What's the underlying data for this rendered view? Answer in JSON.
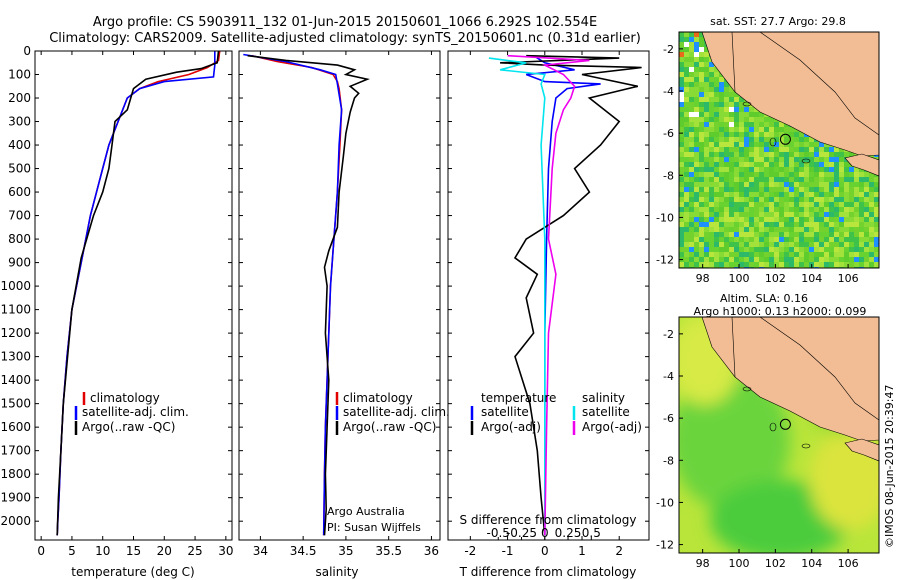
{
  "title": {
    "line1": "Argo profile: CS 5903911_132 01-Jun-2015 20150601_1066 6.292S 102.554E",
    "line2": "Climatology: CARS2009. Satellite-adjusted climatology: synTS_20150601.nc (0.31d earlier)"
  },
  "colors": {
    "climatology": "#e00000",
    "satellite": "#0000ff",
    "argo": "#000000",
    "cyan": "#00e5ee",
    "magenta": "#ee00ee",
    "land": "#f2bd94"
  },
  "chart_data": [
    {
      "type": "line",
      "name": "temperature-profile",
      "xlabel": "temperature (deg C)",
      "ylabel": "",
      "xlim": [
        -1,
        31
      ],
      "ylim": [
        2080,
        0
      ],
      "xticks": [
        0,
        5,
        10,
        15,
        20,
        25,
        30
      ],
      "yticks": [
        0,
        100,
        200,
        300,
        400,
        500,
        600,
        700,
        800,
        900,
        1000,
        1100,
        1200,
        1300,
        1400,
        1500,
        1600,
        1700,
        1800,
        1900,
        2000
      ],
      "legend": [
        "climatology",
        "satellite-adj. clim.",
        "Argo(..raw -QC)"
      ],
      "legend_colors": [
        "#e00000",
        "#0000ff",
        "#000000"
      ],
      "series": [
        {
          "name": "climatology",
          "color": "#e00000",
          "x": [
            29,
            28.8,
            27,
            24,
            19,
            16,
            14,
            12.5,
            11,
            10,
            9.5,
            8,
            6.5,
            5,
            4.2,
            3.6,
            3.2,
            2.9,
            2.7,
            2.6
          ],
          "y": [
            0,
            40,
            70,
            100,
            130,
            160,
            200,
            300,
            400,
            500,
            550,
            700,
            900,
            1100,
            1300,
            1500,
            1700,
            1900,
            2000,
            2060
          ]
        },
        {
          "name": "satellite-adj. clim.",
          "color": "#0000ff",
          "x": [
            28.2,
            28.2,
            28,
            20,
            16,
            14,
            12.5,
            11,
            10,
            9.5,
            8,
            6.5,
            5,
            4.2,
            3.6,
            3.2,
            2.9,
            2.7,
            2.6
          ],
          "y": [
            0,
            60,
            110,
            130,
            160,
            200,
            300,
            400,
            500,
            550,
            700,
            900,
            1100,
            1300,
            1500,
            1700,
            1900,
            2000,
            2060
          ]
        },
        {
          "name": "Argo(..raw -QC)",
          "color": "#000000",
          "x": [
            28.8,
            28.6,
            26,
            22,
            17,
            15,
            14,
            12,
            11.5,
            11,
            10,
            8.5,
            6.5,
            5,
            4.3,
            3.6,
            3.2,
            2.8,
            2.6
          ],
          "y": [
            0,
            50,
            75,
            90,
            120,
            160,
            250,
            300,
            400,
            500,
            600,
            700,
            880,
            1100,
            1300,
            1500,
            1700,
            1900,
            2060
          ]
        }
      ]
    },
    {
      "type": "line",
      "name": "salinity-profile",
      "xlabel": "salinity",
      "xlim": [
        33.75,
        36.1
      ],
      "ylim": [
        2080,
        0
      ],
      "xticks": [
        34,
        34.5,
        35,
        35.5,
        36
      ],
      "xticklabels": [
        "34",
        "34.5",
        "35",
        "35.5",
        "36"
      ],
      "legend": [
        "climatology",
        "satellite-adj. clim.",
        "Argo(..raw -QC)"
      ],
      "legend_colors": [
        "#e00000",
        "#0000ff",
        "#000000"
      ],
      "annotation": [
        "Argo Australia",
        "PI: Susan Wijffels"
      ],
      "series": [
        {
          "name": "climatology",
          "color": "#e00000",
          "x": [
            33.9,
            34.2,
            34.6,
            34.85,
            34.9,
            34.92,
            34.95,
            34.93,
            34.9,
            34.86,
            34.82,
            34.8,
            34.78,
            34.76,
            34.75,
            34.74
          ],
          "y": [
            20,
            45,
            70,
            100,
            130,
            160,
            250,
            400,
            600,
            800,
            1000,
            1200,
            1400,
            1600,
            1800,
            2060
          ]
        },
        {
          "name": "satellite-adj. clim.",
          "color": "#0000ff",
          "x": [
            33.8,
            34.3,
            34.7,
            34.88,
            34.9,
            34.95,
            34.92,
            34.9,
            34.86,
            34.82,
            34.8,
            34.78,
            34.76,
            34.75,
            34.74
          ],
          "y": [
            15,
            45,
            80,
            100,
            140,
            250,
            400,
            600,
            800,
            1000,
            1200,
            1400,
            1600,
            1800,
            2060
          ]
        },
        {
          "name": "Argo(..raw -QC)",
          "color": "#000000",
          "x": [
            33.85,
            34.3,
            34.9,
            35.1,
            35.0,
            35.25,
            35.05,
            35.15,
            35.1,
            35.05,
            35.0,
            34.97,
            34.92,
            34.9,
            34.8,
            34.75,
            34.78,
            34.76,
            34.8,
            34.78,
            34.76,
            34.77,
            34.75
          ],
          "y": [
            20,
            40,
            60,
            80,
            100,
            120,
            150,
            180,
            200,
            260,
            350,
            450,
            600,
            750,
            850,
            920,
            1000,
            1200,
            1400,
            1600,
            1800,
            1950,
            2060
          ]
        }
      ]
    },
    {
      "type": "line",
      "name": "difference-profile",
      "xlabel": "T difference from climatology",
      "xlabel_top": "S difference from climatology",
      "xlim": [
        -2.6,
        2.8
      ],
      "ylim": [
        2080,
        0
      ],
      "xticks": [
        -2,
        -1,
        0,
        1,
        2
      ],
      "xticks_top": [
        -0.5,
        -0.25,
        0,
        0.25,
        0.5
      ],
      "xticklabels_top": [
        "-0.5",
        "-0.25",
        "0",
        "0.25",
        "0.5"
      ],
      "legend_left": {
        "header": "temperature",
        "items": [
          "satellite",
          "Argo(-adj)"
        ],
        "colors": [
          "#0000ff",
          "#000000"
        ]
      },
      "legend_right": {
        "header": "salinity",
        "items": [
          "satellite",
          "Argo(-adj)"
        ],
        "colors": [
          "#00e5ee",
          "#ee00ee"
        ]
      },
      "series": [
        {
          "name": "T satellite",
          "color": "#0000ff",
          "x": [
            -0.3,
            0,
            0.8,
            -0.5,
            0,
            1.5,
            0.6,
            0.3,
            0.2,
            0.1,
            0.05,
            0,
            0,
            0
          ],
          "y": [
            20,
            50,
            80,
            100,
            130,
            140,
            160,
            200,
            300,
            500,
            800,
            1200,
            1600,
            2060
          ]
        },
        {
          "name": "T Argo(-adj)",
          "color": "#000000",
          "x": [
            -0.5,
            2.0,
            -1.2,
            0,
            2.6,
            1.0,
            2.5,
            1.2,
            2.0,
            1.5,
            0.8,
            1.2,
            0.5,
            -0.5,
            -0.8,
            -0.2,
            -0.5,
            -0.3,
            -0.8,
            -0.4,
            -0.2,
            -0.1,
            0
          ],
          "y": [
            20,
            30,
            50,
            60,
            70,
            100,
            150,
            200,
            300,
            400,
            500,
            600,
            700,
            800,
            880,
            950,
            1050,
            1200,
            1300,
            1500,
            1700,
            1900,
            2060
          ]
        },
        {
          "name": "S satellite",
          "color": "#00e5ee",
          "x": [
            -1.5,
            -0.5,
            -1.2,
            0,
            -0.1,
            0,
            -0.1,
            0,
            0,
            0
          ],
          "y": [
            30,
            50,
            80,
            100,
            140,
            200,
            400,
            800,
            1400,
            2060
          ]
        },
        {
          "name": "S Argo(-adj)",
          "color": "#ee00ee",
          "x": [
            -1.0,
            1.2,
            0,
            0.5,
            0.8,
            0.7,
            0.5,
            0.3,
            0.2,
            0.1,
            0.3,
            0.1,
            0.05,
            0
          ],
          "y": [
            20,
            40,
            60,
            100,
            150,
            200,
            250,
            350,
            500,
            800,
            950,
            1200,
            1600,
            2060
          ]
        }
      ]
    },
    {
      "type": "heatmap",
      "name": "map-sst",
      "title": "sat. SST: 27.7  Argo: 29.8",
      "xlim": [
        96.7,
        107.7
      ],
      "ylim": [
        -12.4,
        -1.2
      ],
      "xticks": [
        98,
        100,
        102,
        104,
        106
      ],
      "yticks": [
        -2,
        -4,
        -6,
        -8,
        -10,
        -12
      ],
      "argo_position": [
        102.554,
        -6.292
      ]
    },
    {
      "type": "heatmap",
      "name": "map-sla",
      "title": "Altim. SLA: 0.16",
      "subtitle": "Argo h1000: 0.13 h2000: 0.099",
      "xlim": [
        96.7,
        107.7
      ],
      "ylim": [
        -12.4,
        -1.2
      ],
      "xticks": [
        98,
        100,
        102,
        104,
        106
      ],
      "yticks": [
        -2,
        -4,
        -6,
        -8,
        -10,
        -12
      ],
      "argo_position": [
        102.554,
        -6.292
      ]
    }
  ],
  "footer": {
    "credit": "©IMOS 08-Jun-2015 20:39:47"
  }
}
